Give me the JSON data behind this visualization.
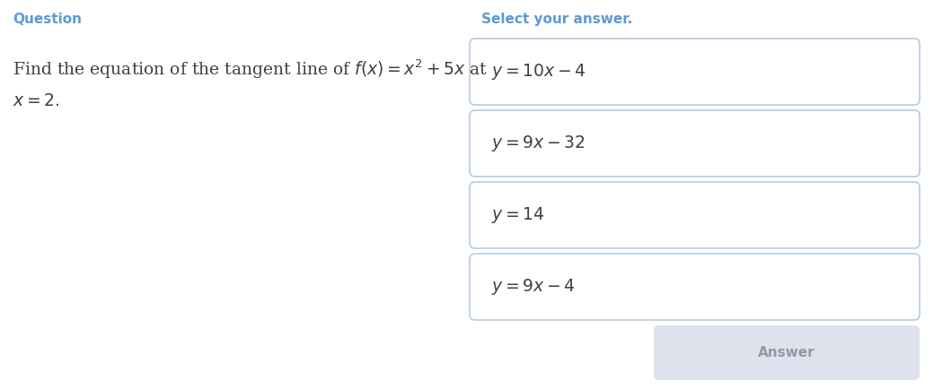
{
  "background_color": "#ffffff",
  "left_panel": {
    "header": "Question",
    "header_color": "#5b9bd5",
    "body_line1": "Find the equation of the tangent line of $f(x) = x^2 + 5x$ at",
    "body_line2": "$x = 2.$",
    "body_color": "#404040",
    "body_fontsize": 13.5,
    "header_fontsize": 11
  },
  "right_panel": {
    "header": "Select your answer.",
    "header_color": "#5b9bd5",
    "header_fontsize": 11,
    "choices": [
      "$y = 10x - 4$",
      "$y = 9x - 32$",
      "$y = 14$",
      "$y = 9x - 4$"
    ],
    "choice_color": "#404040",
    "choice_fontsize": 13.5,
    "box_edge_color": "#b8cce0",
    "box_face_color": "#ffffff",
    "answer_button_text": "Answer",
    "answer_button_color": "#dde2ec",
    "answer_button_text_color": "#9099aa"
  }
}
